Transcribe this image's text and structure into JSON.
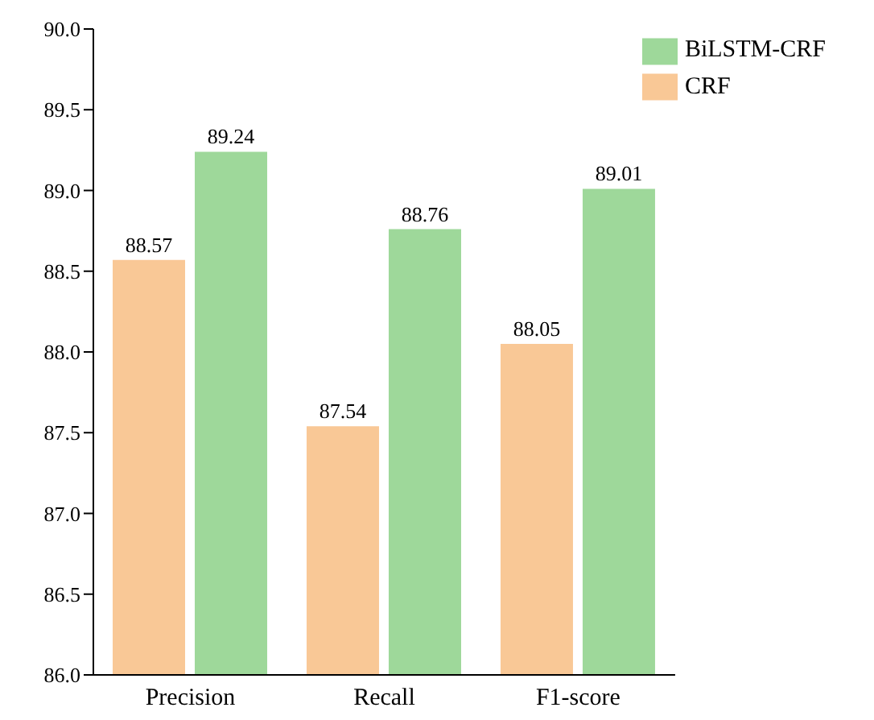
{
  "chart_data": {
    "type": "bar",
    "categories": [
      "Precision",
      "Recall",
      "F1-score"
    ],
    "series": [
      {
        "name": "CRF",
        "color": "#f9c896",
        "values": [
          88.57,
          87.54,
          88.05
        ]
      },
      {
        "name": "BiLSTM-CRF",
        "color": "#9ed89a",
        "values": [
          89.24,
          88.76,
          89.01
        ]
      }
    ],
    "ylim": [
      86,
      90
    ],
    "yticks": [
      {
        "value": 86,
        "label": "86.0"
      },
      {
        "value": 86.5,
        "label": "86.5"
      },
      {
        "value": 87,
        "label": "87.0"
      },
      {
        "value": 87.5,
        "label": "87.5"
      },
      {
        "value": 88,
        "label": "88.0"
      },
      {
        "value": 88.5,
        "label": "88.5"
      },
      {
        "value": 89,
        "label": "89.0"
      },
      {
        "value": 89.5,
        "label": "89.5"
      },
      {
        "value": 90,
        "label": "90.0"
      }
    ],
    "data_labels": true,
    "legend": "top right",
    "grid": false
  }
}
